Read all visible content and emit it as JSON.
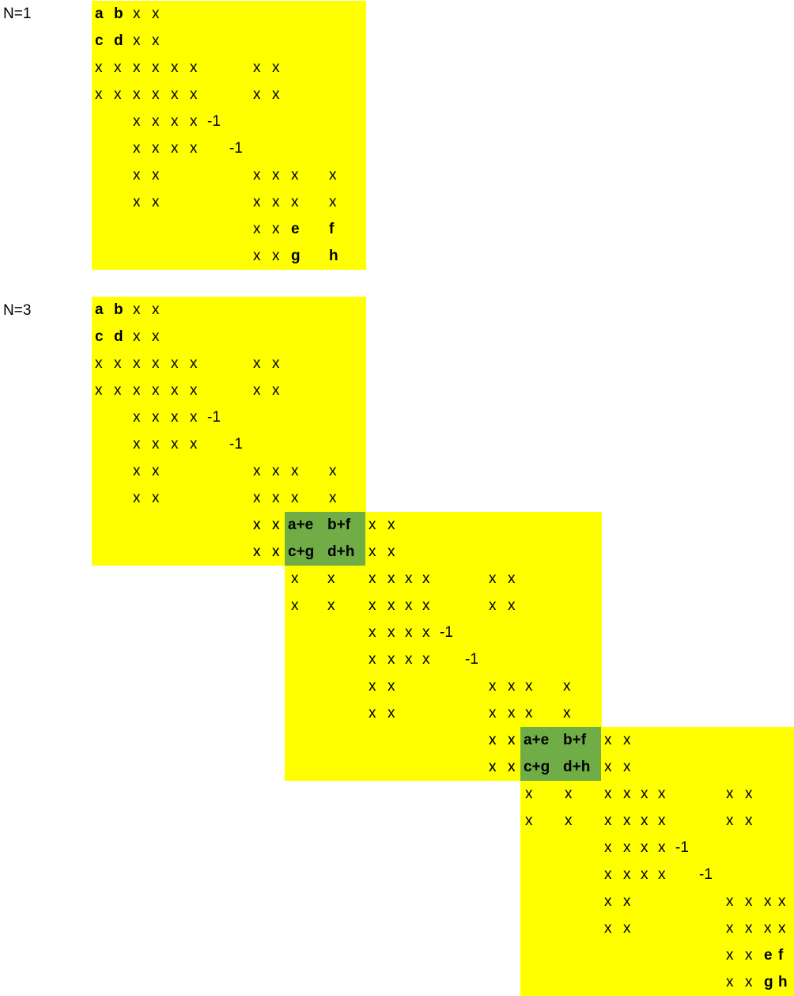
{
  "diagrams": [
    {
      "label": "N=1",
      "blocks": [
        {
          "fill": "#ffff00",
          "rows": [
            [
              "a",
              "b",
              "x",
              "x",
              "",
              "",
              "",
              "",
              "",
              "",
              "",
              "",
              "",
              ""
            ],
            [
              "c",
              "d",
              "x",
              "x",
              "",
              "",
              "",
              "",
              "",
              "",
              "",
              "",
              "",
              ""
            ],
            [
              "x",
              "x",
              "x",
              "x",
              "x",
              "x",
              "",
              "",
              "x",
              "x",
              "",
              "",
              "",
              ""
            ],
            [
              "x",
              "x",
              "x",
              "x",
              "x",
              "x",
              "",
              "",
              "x",
              "x",
              "",
              "",
              "",
              ""
            ],
            [
              "",
              "",
              "x",
              "x",
              "x",
              "x",
              "-1",
              "",
              "",
              "",
              "",
              "",
              "",
              ""
            ],
            [
              "",
              "",
              "x",
              "x",
              "x",
              "x",
              "",
              "-1",
              "",
              "",
              "",
              "",
              "",
              ""
            ],
            [
              "",
              "",
              "x",
              "x",
              "",
              "",
              "",
              "",
              "x",
              "x",
              "x",
              "",
              "x",
              ""
            ],
            [
              "",
              "",
              "x",
              "x",
              "",
              "",
              "",
              "",
              "x",
              "x",
              "x",
              "",
              "x",
              ""
            ],
            [
              "",
              "",
              "",
              "",
              "",
              "",
              "",
              "",
              "x",
              "x",
              "e",
              "",
              "f",
              ""
            ],
            [
              "",
              "",
              "",
              "",
              "",
              "",
              "",
              "",
              "x",
              "x",
              "g",
              "",
              "h",
              ""
            ]
          ]
        }
      ]
    },
    {
      "label": "N=3",
      "blocks": [
        {
          "fill": "#ffff00",
          "rows": [
            [
              "a",
              "b",
              "x",
              "x",
              "",
              "",
              "",
              "",
              "",
              "",
              "",
              "",
              "",
              ""
            ],
            [
              "c",
              "d",
              "x",
              "x",
              "",
              "",
              "",
              "",
              "",
              "",
              "",
              "",
              "",
              ""
            ],
            [
              "x",
              "x",
              "x",
              "x",
              "x",
              "x",
              "",
              "",
              "x",
              "x",
              "",
              "",
              "",
              ""
            ],
            [
              "x",
              "x",
              "x",
              "x",
              "x",
              "x",
              "",
              "",
              "x",
              "x",
              "",
              "",
              "",
              ""
            ],
            [
              "",
              "",
              "x",
              "x",
              "x",
              "x",
              "-1",
              "",
              "",
              "",
              "",
              "",
              "",
              ""
            ],
            [
              "",
              "",
              "x",
              "x",
              "x",
              "x",
              "",
              "-1",
              "",
              "",
              "",
              "",
              "",
              ""
            ],
            [
              "",
              "",
              "x",
              "x",
              "",
              "",
              "",
              "",
              "x",
              "x",
              "x",
              "",
              "x",
              ""
            ],
            [
              "",
              "",
              "x",
              "x",
              "",
              "",
              "",
              "",
              "x",
              "x",
              "x",
              "",
              "x",
              ""
            ],
            [
              "",
              "",
              "",
              "",
              "",
              "",
              "",
              "",
              "x",
              "x",
              "",
              "",
              "",
              ""
            ],
            [
              "",
              "",
              "",
              "",
              "",
              "",
              "",
              "",
              "x",
              "x",
              "",
              "",
              "",
              ""
            ]
          ]
        },
        {
          "fill": "#ffff00",
          "rows": [
            [
              "",
              "",
              "",
              "",
              "x",
              "x",
              "",
              "",
              "",
              "",
              "",
              "",
              "",
              ""
            ],
            [
              "",
              "",
              "",
              "",
              "x",
              "x",
              "",
              "",
              "",
              "",
              "",
              "",
              "",
              ""
            ],
            [
              "x",
              "",
              "x",
              "",
              "x",
              "x",
              "x",
              "x",
              "",
              "",
              "x",
              "x",
              "",
              ""
            ],
            [
              "x",
              "",
              "x",
              "",
              "x",
              "x",
              "x",
              "x",
              "",
              "",
              "x",
              "x",
              "",
              ""
            ],
            [
              "",
              "",
              "",
              "",
              "x",
              "x",
              "x",
              "x",
              "-1",
              "",
              "",
              "",
              "",
              ""
            ],
            [
              "",
              "",
              "",
              "",
              "x",
              "x",
              "x",
              "x",
              "",
              "-1",
              "",
              "",
              "",
              ""
            ],
            [
              "",
              "",
              "",
              "",
              "x",
              "x",
              "",
              "",
              "",
              "",
              "x",
              "x",
              "x",
              ""
            ],
            [
              "",
              "",
              "",
              "",
              "x",
              "x",
              "",
              "",
              "",
              "",
              "x",
              "x",
              "x",
              ""
            ],
            [
              "",
              "",
              "",
              "",
              "",
              "",
              "",
              "",
              "",
              "",
              "x",
              "x",
              "",
              ""
            ],
            [
              "",
              "",
              "",
              "",
              "",
              "",
              "",
              "",
              "",
              "",
              "x",
              "x",
              "",
              ""
            ]
          ],
          "trailing": [
            [
              "",
              "",
              "",
              "x"
            ],
            [
              "",
              "",
              "",
              "x"
            ]
          ]
        },
        {
          "fill": "#ffff00",
          "rows": [
            [
              "",
              "",
              "",
              "",
              "x",
              "x",
              "",
              "",
              "",
              "",
              "",
              "",
              "",
              ""
            ],
            [
              "",
              "",
              "",
              "",
              "x",
              "x",
              "",
              "",
              "",
              "",
              "",
              "",
              "",
              ""
            ],
            [
              "x",
              "",
              "x",
              "",
              "x",
              "x",
              "x",
              "x",
              "",
              "",
              "x",
              "x",
              "",
              ""
            ],
            [
              "x",
              "",
              "x",
              "",
              "x",
              "x",
              "x",
              "x",
              "",
              "",
              "x",
              "x",
              "",
              ""
            ],
            [
              "",
              "",
              "",
              "",
              "x",
              "x",
              "x",
              "x",
              "-1",
              "",
              "",
              "",
              "",
              ""
            ],
            [
              "",
              "",
              "",
              "",
              "x",
              "x",
              "x",
              "x",
              "",
              "-1",
              "",
              "",
              "",
              ""
            ],
            [
              "",
              "",
              "",
              "",
              "x",
              "x",
              "",
              "",
              "",
              "",
              "x",
              "x",
              "x",
              "x"
            ],
            [
              "",
              "",
              "",
              "",
              "x",
              "x",
              "",
              "",
              "",
              "",
              "x",
              "x",
              "x",
              "x"
            ],
            [
              "",
              "",
              "",
              "",
              "",
              "",
              "",
              "",
              "",
              "",
              "x",
              "x",
              "e",
              "f"
            ],
            [
              "",
              "",
              "",
              "",
              "",
              "",
              "",
              "",
              "",
              "",
              "x",
              "x",
              "g",
              "h"
            ]
          ]
        }
      ],
      "overlaps": [
        {
          "fill": "#70ad47",
          "cells": [
            [
              "a+e",
              "b+f"
            ],
            [
              "c+g",
              "d+h"
            ]
          ]
        },
        {
          "fill": "#70ad47",
          "cells": [
            [
              "a+e",
              "b+f"
            ],
            [
              "c+g",
              "d+h"
            ]
          ]
        }
      ],
      "extras": [
        [
          "x"
        ],
        [
          "x"
        ]
      ]
    }
  ]
}
